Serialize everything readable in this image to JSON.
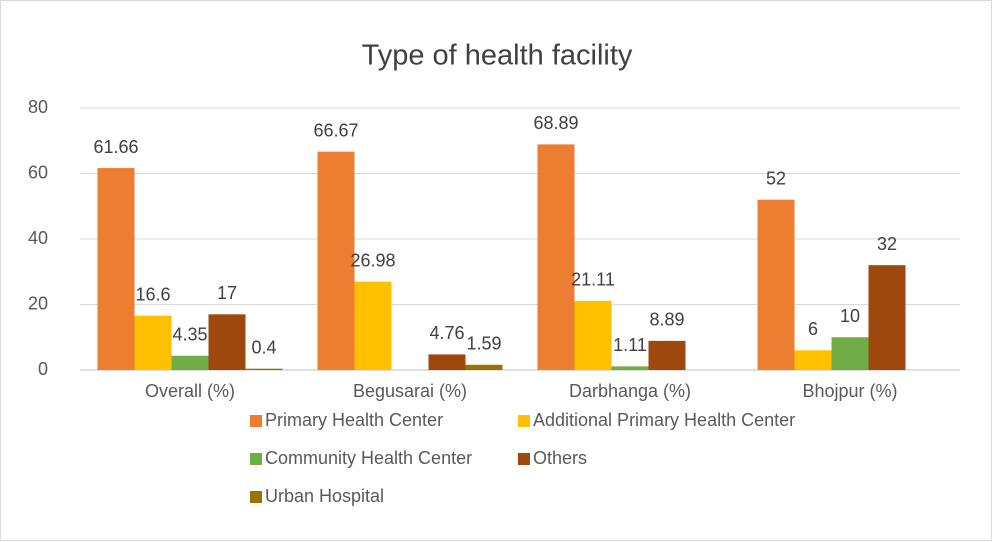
{
  "chart_data": {
    "type": "bar",
    "title": "Type of health facility",
    "categories": [
      "Overall (%)",
      "Begusarai (%)",
      "Darbhanga (%)",
      "Bhojpur (%)"
    ],
    "series": [
      {
        "name": "Primary Health Center",
        "color": "#ED7D31",
        "values": [
          61.66,
          66.67,
          68.89,
          52
        ]
      },
      {
        "name": "Additional Primary Health Center",
        "color": "#FFC000",
        "values": [
          16.6,
          26.98,
          21.11,
          6
        ]
      },
      {
        "name": "Community Health Center",
        "color": "#70AD47",
        "values": [
          4.35,
          null,
          1.11,
          10
        ]
      },
      {
        "name": "Others",
        "color": "#9E480E",
        "values": [
          17,
          4.76,
          8.89,
          32
        ]
      },
      {
        "name": "Urban Hospital",
        "color": "#997300",
        "values": [
          0.4,
          1.59,
          null,
          null
        ]
      }
    ],
    "ylim": [
      0,
      80
    ],
    "yticks": [
      0,
      20,
      40,
      60,
      80
    ],
    "grid": true,
    "legend": "bottom"
  }
}
